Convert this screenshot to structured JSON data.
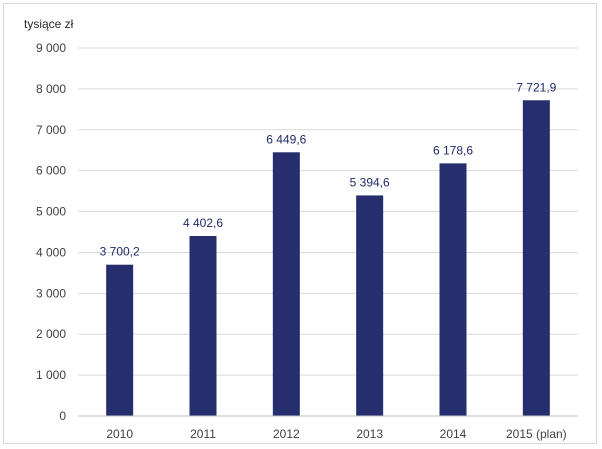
{
  "chart_data": {
    "type": "bar",
    "unit_label": "tysiące zł",
    "categories": [
      "2010",
      "2011",
      "2012",
      "2013",
      "2014",
      "2015 (plan)"
    ],
    "values": [
      3700.2,
      4402.6,
      6449.6,
      5394.6,
      6178.6,
      7721.9
    ],
    "value_labels": [
      "3 700,2",
      "4 402,6",
      "6 449,6",
      "5 394,6",
      "6 178,6",
      "7 721,9"
    ],
    "ylim": [
      0,
      9000
    ],
    "yticks": [
      0,
      1000,
      2000,
      3000,
      4000,
      5000,
      6000,
      7000,
      8000,
      9000
    ],
    "ytick_labels": [
      "0",
      "1 000",
      "2 000",
      "3 000",
      "4 000",
      "5 000",
      "6 000",
      "7 000",
      "8 000",
      "9 000"
    ],
    "grid": true,
    "colors": {
      "bar": "#262e6e",
      "grid": "#d9d9d9",
      "axis": "#bfbfbf",
      "data_label": "#1f2a6b"
    }
  }
}
